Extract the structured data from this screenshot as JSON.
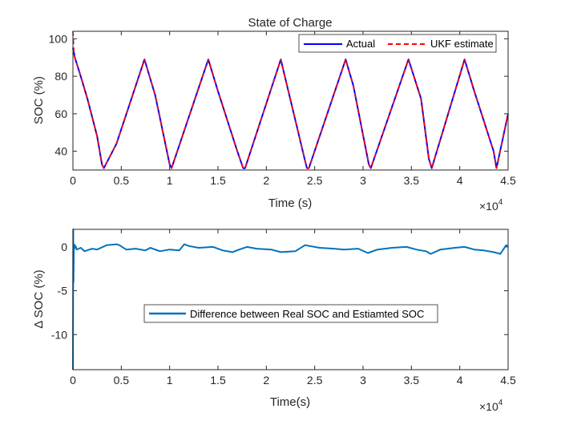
{
  "chart_data": [
    {
      "type": "line",
      "title": "State of Charge",
      "xlabel": "Time (s)",
      "ylabel": "SOC (%)",
      "x_exponent": "×10",
      "x_exponent_power": "4",
      "xlim": [
        0,
        4.5
      ],
      "ylim": [
        30,
        104
      ],
      "xticks": [
        0,
        0.5,
        1,
        1.5,
        2,
        2.5,
        3,
        3.5,
        4,
        4.5
      ],
      "xtick_labels": [
        "0",
        "0.5",
        "1",
        "1.5",
        "2",
        "2.5",
        "3",
        "3.5",
        "4",
        "4.5"
      ],
      "yticks": [
        40,
        60,
        80,
        100
      ],
      "ytick_labels": [
        "40",
        "60",
        "80",
        "100"
      ],
      "legend_location": "top-right",
      "series": [
        {
          "name": "Actual",
          "color": "#0000ff",
          "style": "solid",
          "x": [
            0,
            0.02,
            0.08,
            0.15,
            0.25,
            0.3,
            0.32,
            0.45,
            0.74,
            0.85,
            1.0,
            1.02,
            1.4,
            1.5,
            1.7,
            1.76,
            1.78,
            2.15,
            2.2,
            2.4,
            2.42,
            2.44,
            2.82,
            2.9,
            3.06,
            3.08,
            3.47,
            3.6,
            3.68,
            3.71,
            4.05,
            4.15,
            4.35,
            4.38,
            4.5
          ],
          "y": [
            95,
            90,
            80,
            68,
            48,
            33,
            31,
            44,
            89,
            70,
            33,
            31,
            89,
            72,
            40,
            31,
            31,
            89,
            78,
            35,
            31,
            31,
            89,
            75,
            33,
            31,
            89,
            68,
            36,
            31,
            89,
            72,
            40,
            31,
            60
          ]
        },
        {
          "name": "UKF estimate",
          "color": "#ff0000",
          "style": "dashed",
          "x": [
            0,
            0.01,
            0.02,
            0.08,
            0.15,
            0.25,
            0.3,
            0.32,
            0.45,
            0.74,
            0.85,
            1.0,
            1.02,
            1.4,
            1.5,
            1.7,
            1.76,
            1.78,
            2.15,
            2.2,
            2.4,
            2.42,
            2.44,
            2.82,
            2.9,
            3.06,
            3.08,
            3.47,
            3.6,
            3.68,
            3.71,
            4.05,
            4.15,
            4.35,
            4.38,
            4.5
          ],
          "y": [
            104,
            93,
            90,
            80,
            68,
            48,
            33,
            31,
            44,
            89,
            70,
            33,
            31,
            89,
            72,
            40,
            31,
            31,
            89,
            78,
            35,
            31,
            31,
            89,
            75,
            33,
            31,
            89,
            68,
            36,
            31,
            89,
            72,
            40,
            31,
            60
          ]
        }
      ]
    },
    {
      "type": "line",
      "title": "",
      "xlabel": "Time(s)",
      "ylabel": "Δ SOC (%)",
      "x_exponent": "×10",
      "x_exponent_power": "4",
      "xlim": [
        0,
        4.5
      ],
      "ylim": [
        -14,
        2
      ],
      "xticks": [
        0,
        0.5,
        1,
        1.5,
        2,
        2.5,
        3,
        3.5,
        4,
        4.5
      ],
      "xtick_labels": [
        "0",
        "0.5",
        "1",
        "1.5",
        "2",
        "2.5",
        "3",
        "3.5",
        "4",
        "4.5"
      ],
      "yticks": [
        -10,
        -5,
        0
      ],
      "ytick_labels": [
        "-10",
        "-5",
        "0"
      ],
      "legend_location": "center",
      "series": [
        {
          "name": "Difference between Real SOC and Estiamted SOC",
          "color": "#0072bd",
          "style": "solid",
          "x": [
            0,
            0.003,
            0.006,
            0.01,
            0.015,
            0.02,
            0.04,
            0.08,
            0.12,
            0.2,
            0.25,
            0.35,
            0.45,
            0.48,
            0.55,
            0.65,
            0.75,
            0.8,
            0.9,
            1.0,
            1.1,
            1.15,
            1.2,
            1.3,
            1.45,
            1.55,
            1.65,
            1.72,
            1.8,
            1.9,
            2.05,
            2.15,
            2.3,
            2.4,
            2.45,
            2.55,
            2.7,
            2.8,
            2.95,
            3.05,
            3.15,
            3.3,
            3.45,
            3.55,
            3.65,
            3.7,
            3.8,
            3.95,
            4.05,
            4.15,
            4.25,
            4.35,
            4.42,
            4.48,
            4.5
          ],
          "y": [
            -14,
            2,
            -4,
            0.3,
            -0.2,
            0.2,
            -0.3,
            -0.1,
            -0.5,
            -0.2,
            -0.3,
            0.2,
            0.3,
            0.2,
            -0.3,
            -0.2,
            -0.4,
            -0.1,
            -0.5,
            -0.3,
            -0.4,
            0.3,
            0.1,
            -0.1,
            0.0,
            -0.4,
            -0.6,
            -0.3,
            0.0,
            -0.2,
            -0.3,
            -0.6,
            -0.5,
            0.2,
            0.1,
            -0.1,
            -0.2,
            -0.3,
            -0.2,
            -0.7,
            -0.3,
            -0.1,
            0.0,
            -0.3,
            -0.5,
            -0.8,
            -0.3,
            -0.1,
            0.0,
            -0.3,
            -0.4,
            -0.6,
            -0.8,
            0.2,
            0.0
          ]
        }
      ]
    }
  ]
}
